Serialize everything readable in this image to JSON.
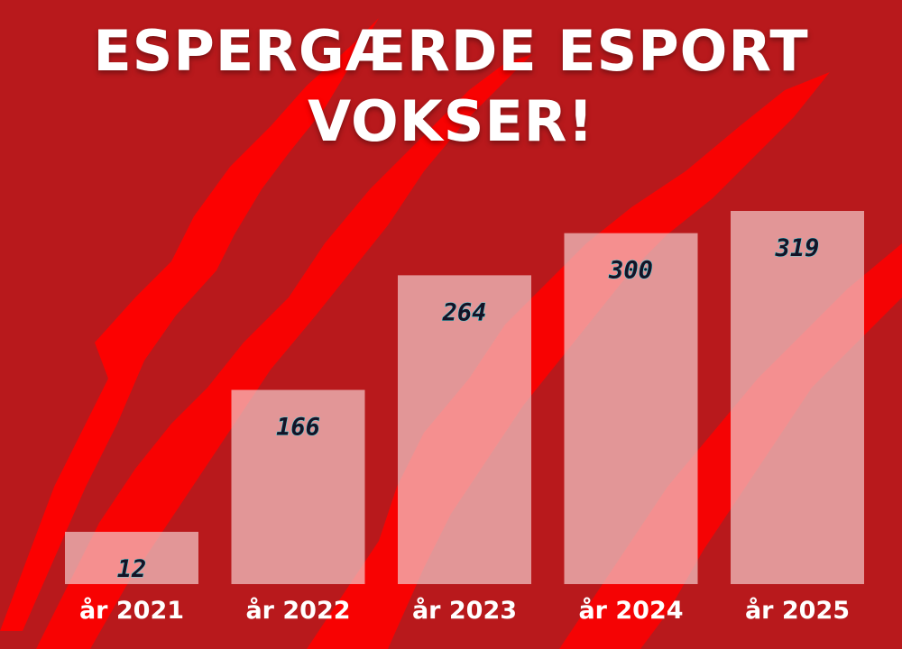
{
  "title_lines": [
    "ESPERGÆRDE ESPORT",
    "VOKSER!"
  ],
  "colors": {
    "background": "#b8191c",
    "streak": "#ff0000",
    "bar": "#f3cccc",
    "value_text": "#151226",
    "value_glow": "#3ee6f0",
    "category_text": "#ffffff"
  },
  "chart_data": {
    "type": "bar",
    "categories": [
      "år 2021",
      "år 2022",
      "år 2023",
      "år 2024",
      "år 2025"
    ],
    "values": [
      12,
      166,
      264,
      300,
      319
    ],
    "value_labels": [
      "12",
      "166",
      "264",
      "300",
      "319"
    ],
    "ylim": [
      0,
      319
    ],
    "grid": false,
    "legend": "none"
  }
}
